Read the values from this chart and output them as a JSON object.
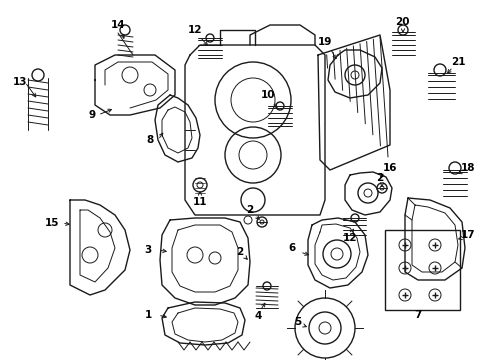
{
  "background_color": "#ffffff",
  "fig_width": 4.89,
  "fig_height": 3.6,
  "dpi": 100,
  "line_color": "#1a1a1a",
  "text_color": "#000000",
  "label_fontsize": 7.5
}
